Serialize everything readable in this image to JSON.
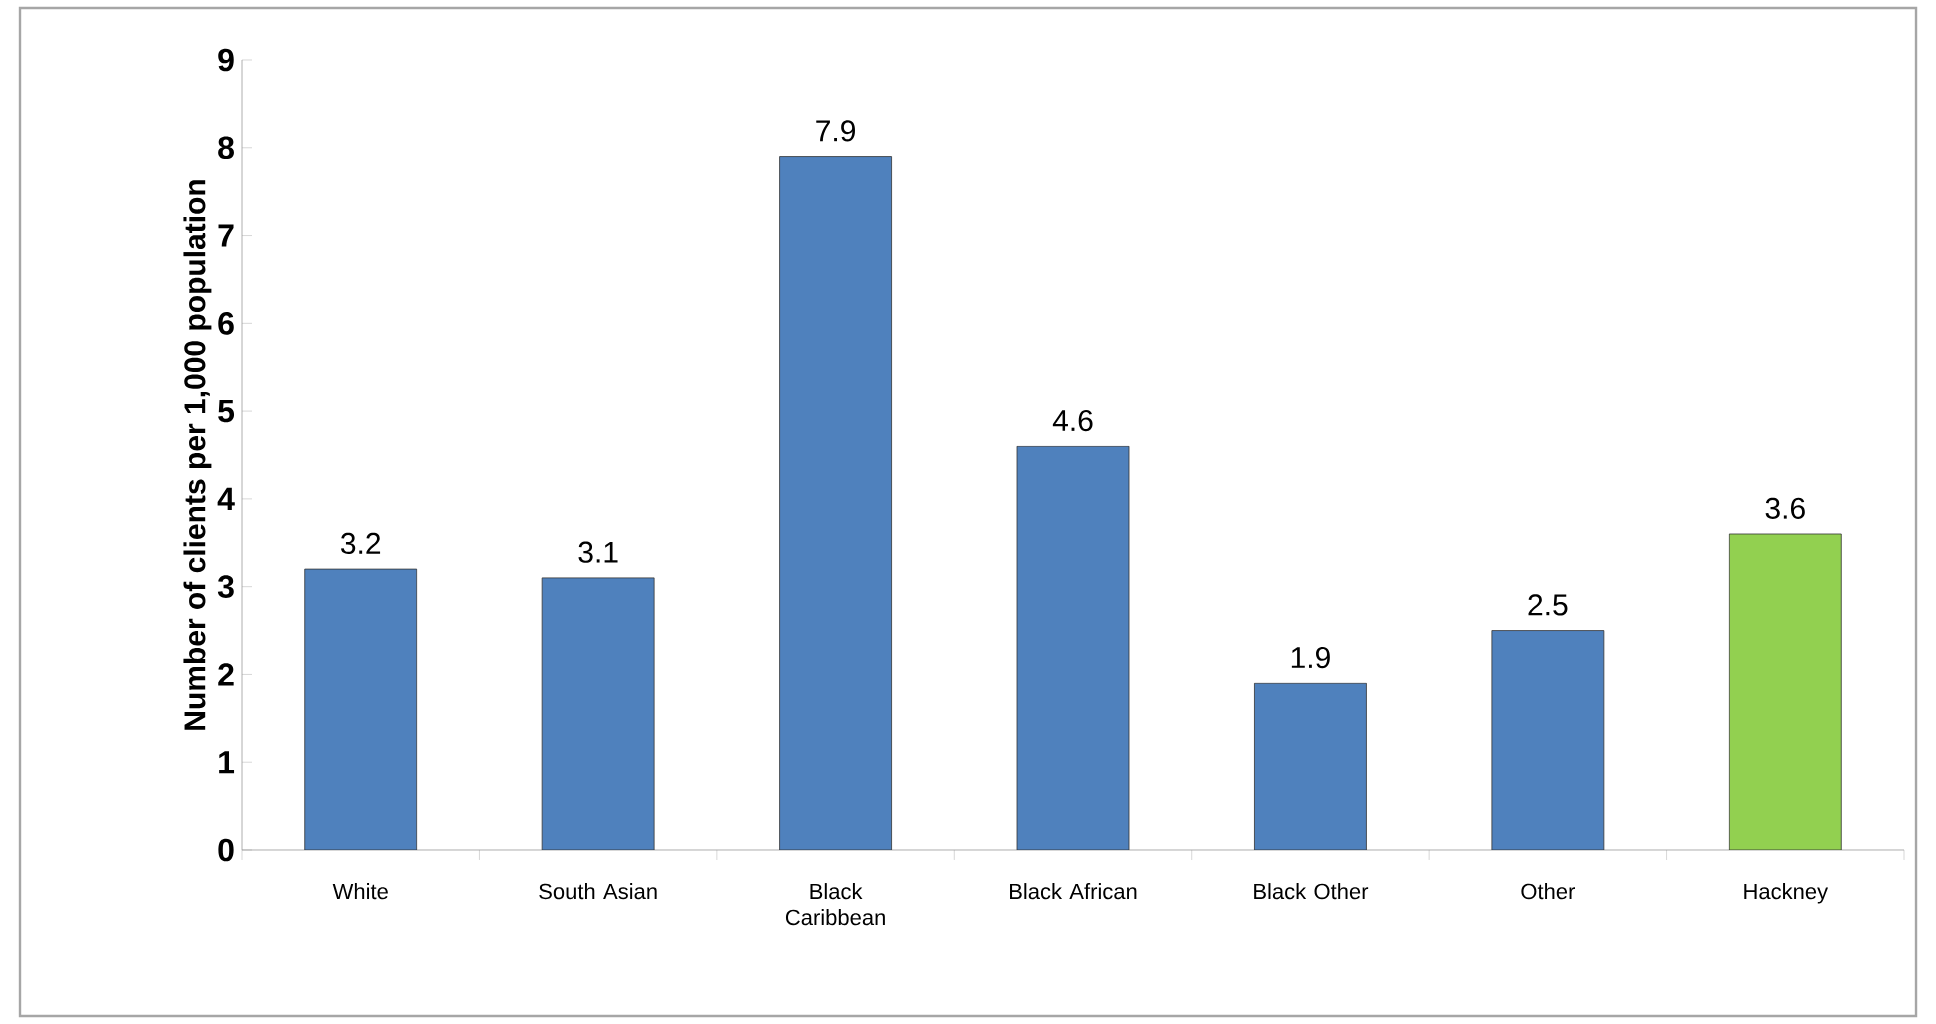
{
  "chart_data": {
    "type": "bar",
    "ylabel": "Number of clients per 1,000 population",
    "categories": [
      "White",
      "South Asian",
      "Black Caribbean",
      "Black African",
      "Black Other",
      "Other",
      "Hackney"
    ],
    "values": [
      3.2,
      3.1,
      7.9,
      4.6,
      1.9,
      2.5,
      3.6
    ],
    "colors": [
      "#4f81bd",
      "#4f81bd",
      "#4f81bd",
      "#4f81bd",
      "#4f81bd",
      "#4f81bd",
      "#92d050"
    ],
    "ylim": [
      0,
      9
    ],
    "yticks": [
      0,
      1,
      2,
      3,
      4,
      5,
      6,
      7,
      8,
      9
    ],
    "data_labels": true
  }
}
